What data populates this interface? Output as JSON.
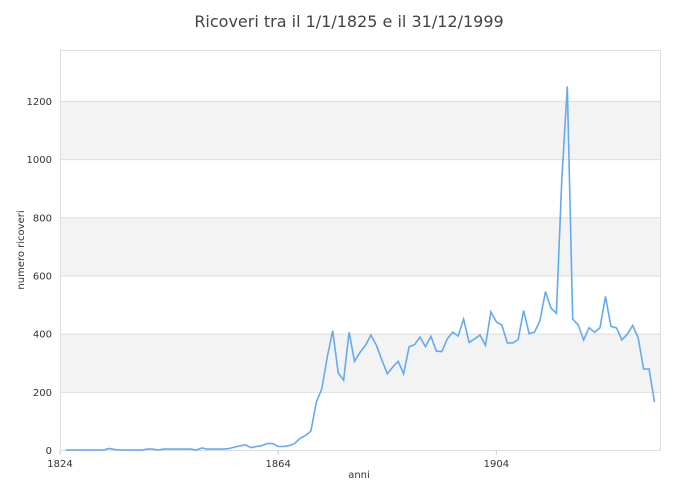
{
  "chart_data": {
    "type": "line",
    "title": "Ricoveri tra il 1/1/1825 e il 31/12/1999",
    "xlabel": "anni",
    "ylabel": "numero ricoveri",
    "xlim": [
      1824,
      1934
    ],
    "ylim": [
      0,
      1375
    ],
    "xticks": [
      1824,
      1864,
      1904
    ],
    "yticks": [
      0,
      200,
      400,
      600,
      800,
      1000,
      1200
    ],
    "grid": true,
    "line_color": "#64aaf0",
    "x": [
      1825,
      1826,
      1827,
      1828,
      1829,
      1830,
      1831,
      1832,
      1833,
      1834,
      1835,
      1836,
      1837,
      1838,
      1839,
      1840,
      1841,
      1842,
      1843,
      1844,
      1845,
      1846,
      1847,
      1848,
      1849,
      1850,
      1851,
      1852,
      1853,
      1854,
      1855,
      1856,
      1857,
      1858,
      1859,
      1860,
      1861,
      1862,
      1863,
      1864,
      1865,
      1866,
      1867,
      1868,
      1869,
      1870,
      1871,
      1872,
      1873,
      1874,
      1875,
      1876,
      1877,
      1878,
      1879,
      1880,
      1881,
      1882,
      1883,
      1884,
      1885,
      1886,
      1887,
      1888,
      1889,
      1890,
      1891,
      1892,
      1893,
      1894,
      1895,
      1896,
      1897,
      1898,
      1899,
      1900,
      1901,
      1902,
      1903,
      1904,
      1905,
      1906,
      1907,
      1908,
      1909,
      1910,
      1911,
      1912,
      1913,
      1914,
      1915,
      1916,
      1917,
      1918,
      1919,
      1920,
      1921,
      1922,
      1923,
      1924,
      1925,
      1926,
      1927,
      1928,
      1929,
      1930,
      1931,
      1932,
      1933
    ],
    "values": [
      0,
      0,
      0,
      0,
      0,
      0,
      0,
      0,
      5,
      2,
      0,
      0,
      0,
      0,
      0,
      3,
      3,
      0,
      3,
      3,
      3,
      3,
      3,
      3,
      0,
      7,
      3,
      3,
      3,
      3,
      5,
      10,
      14,
      18,
      8,
      12,
      15,
      22,
      22,
      12,
      12,
      15,
      22,
      40,
      50,
      65,
      165,
      210,
      320,
      410,
      265,
      240,
      405,
      305,
      335,
      360,
      395,
      360,
      310,
      262,
      285,
      305,
      262,
      355,
      362,
      388,
      355,
      390,
      340,
      338,
      382,
      405,
      392,
      450,
      370,
      382,
      395,
      360,
      475,
      440,
      430,
      368,
      368,
      380,
      480,
      400,
      405,
      445,
      545,
      488,
      470,
      930,
      1250,
      450,
      430,
      378,
      420,
      405,
      420,
      528,
      425,
      420,
      378,
      398,
      428,
      385,
      278,
      278,
      165
    ]
  }
}
